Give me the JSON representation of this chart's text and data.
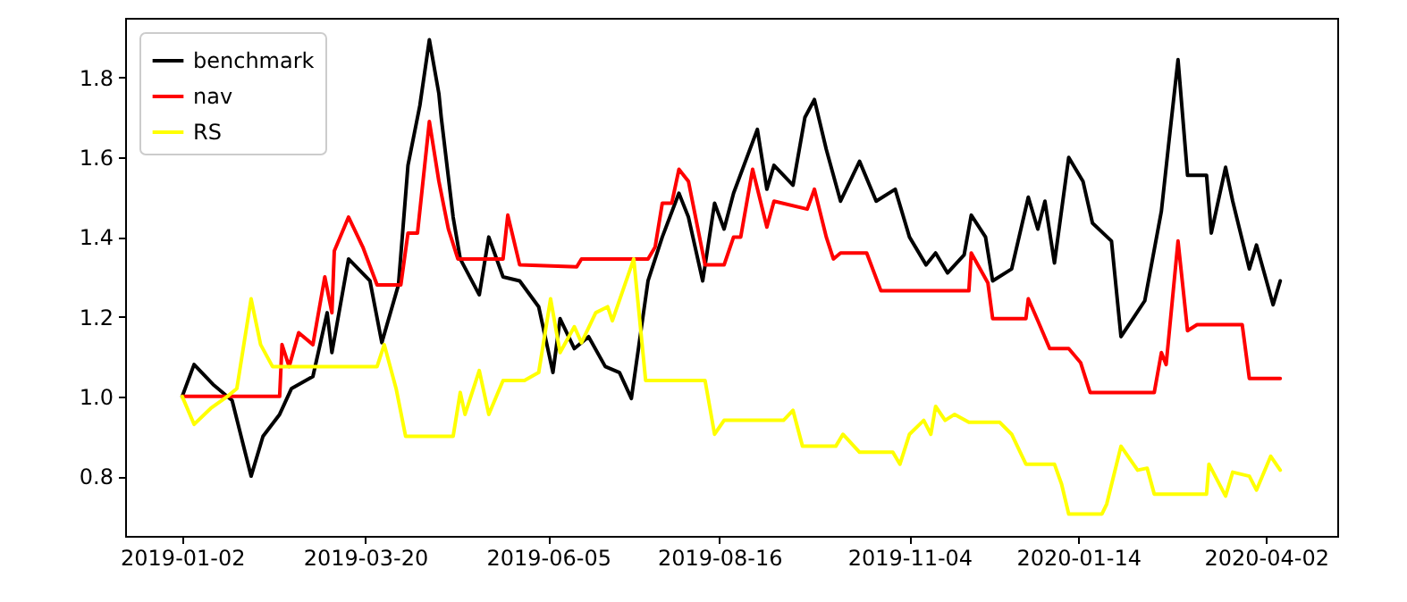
{
  "chart_data": {
    "type": "line",
    "legend": "top left",
    "grid": false,
    "line_style": "solid",
    "xlim": [
      "2018-12-09",
      "2020-05-02"
    ],
    "xticks": [
      "2019-01-02",
      "2019-03-20",
      "2019-06-05",
      "2019-08-16",
      "2019-11-04",
      "2020-01-14",
      "2020-04-02"
    ],
    "ylim": [
      0.65,
      1.95
    ],
    "yticks": [
      0.8,
      {
        "value": 1,
        "label": "1.0"
      },
      1.2,
      1.4,
      1.6,
      1.8
    ],
    "series": [
      {
        "name": "benchmark",
        "color": "#000000",
        "x": [
          "2019-01-02",
          "2019-01-07",
          "2019-01-15",
          "2019-01-23",
          "2019-01-31",
          "2019-02-05",
          "2019-02-12",
          "2019-02-17",
          "2019-02-26",
          "2019-03-04",
          "2019-03-06",
          "2019-03-13",
          "2019-03-22",
          "2019-03-27",
          "2019-04-03",
          "2019-04-07",
          "2019-04-12",
          "2019-04-16",
          "2019-04-20",
          "2019-04-21",
          "2019-04-26",
          "2019-04-29",
          "2019-05-07",
          "2019-05-11",
          "2019-05-17",
          "2019-05-24",
          "2019-06-01",
          "2019-06-07",
          "2019-06-10",
          "2019-06-16",
          "2019-06-22",
          "2019-06-29",
          "2019-07-05",
          "2019-07-10",
          "2019-07-17",
          "2019-07-23",
          "2019-07-30",
          "2019-08-03",
          "2019-08-09",
          "2019-08-14",
          "2019-08-18",
          "2019-08-22",
          "2019-09-01",
          "2019-09-05",
          "2019-09-08",
          "2019-09-16",
          "2019-09-21",
          "2019-09-25",
          "2019-09-30",
          "2019-10-06",
          "2019-10-14",
          "2019-10-21",
          "2019-10-29",
          "2019-11-04",
          "2019-11-11",
          "2019-11-15",
          "2019-11-20",
          "2019-11-27",
          "2019-11-30",
          "2019-12-06",
          "2019-12-09",
          "2019-12-17",
          "2019-12-24",
          "2019-12-28",
          "2019-12-31",
          "2020-01-04",
          "2020-01-10",
          "2020-01-16",
          "2020-01-20",
          "2020-01-28",
          "2020-02-01",
          "2020-02-11",
          "2020-02-18",
          "2020-02-21",
          "2020-02-25",
          "2020-02-29",
          "2020-03-08",
          "2020-03-10",
          "2020-03-16",
          "2020-03-19",
          "2020-03-26",
          "2020-03-29",
          "2020-04-05",
          "2020-04-08"
        ],
        "values": [
          1.0,
          1.08,
          1.03,
          0.99,
          0.8,
          0.9,
          0.955,
          1.02,
          1.05,
          1.21,
          1.11,
          1.345,
          1.29,
          1.135,
          1.28,
          1.58,
          1.73,
          1.895,
          1.76,
          1.7,
          1.45,
          1.345,
          1.255,
          1.4,
          1.3,
          1.29,
          1.225,
          1.06,
          1.195,
          1.12,
          1.15,
          1.075,
          1.06,
          0.995,
          1.29,
          1.4,
          1.51,
          1.45,
          1.29,
          1.485,
          1.42,
          1.51,
          1.67,
          1.52,
          1.58,
          1.53,
          1.7,
          1.745,
          1.62,
          1.49,
          1.59,
          1.49,
          1.52,
          1.4,
          1.33,
          1.36,
          1.31,
          1.355,
          1.455,
          1.4,
          1.29,
          1.32,
          1.5,
          1.42,
          1.49,
          1.335,
          1.6,
          1.54,
          1.435,
          1.39,
          1.15,
          1.24,
          1.465,
          1.63,
          1.845,
          1.555,
          1.555,
          1.41,
          1.575,
          1.49,
          1.32,
          1.38,
          1.23,
          1.29
        ]
      },
      {
        "name": "nav",
        "color": "#ff0000",
        "x": [
          "2019-01-02",
          "2019-02-12",
          "2019-02-13",
          "2019-02-16",
          "2019-02-20",
          "2019-02-26",
          "2019-03-03",
          "2019-03-06",
          "2019-03-07",
          "2019-03-13",
          "2019-03-19",
          "2019-03-25",
          "2019-04-04",
          "2019-04-07",
          "2019-04-11",
          "2019-04-16",
          "2019-04-20",
          "2019-04-24",
          "2019-04-28",
          "2019-05-17",
          "2019-05-19",
          "2019-05-24",
          "2019-06-17",
          "2019-06-19",
          "2019-07-17",
          "2019-07-20",
          "2019-07-23",
          "2019-07-27",
          "2019-07-30",
          "2019-08-03",
          "2019-08-10",
          "2019-08-18",
          "2019-08-22",
          "2019-08-25",
          "2019-08-30",
          "2019-09-05",
          "2019-09-08",
          "2019-09-22",
          "2019-09-25",
          "2019-09-30",
          "2019-10-03",
          "2019-10-06",
          "2019-10-17",
          "2019-10-23",
          "2019-11-29",
          "2019-11-30",
          "2019-12-07",
          "2019-12-09",
          "2019-12-23",
          "2019-12-24",
          "2019-12-28",
          "2020-01-02",
          "2020-01-10",
          "2020-01-15",
          "2020-01-19",
          "2020-02-15",
          "2020-02-18",
          "2020-02-20",
          "2020-02-25",
          "2020-02-29",
          "2020-03-04",
          "2020-03-23",
          "2020-03-26",
          "2020-04-08"
        ],
        "values": [
          1.0,
          1.0,
          1.13,
          1.075,
          1.16,
          1.13,
          1.3,
          1.21,
          1.365,
          1.45,
          1.375,
          1.28,
          1.28,
          1.41,
          1.41,
          1.69,
          1.54,
          1.42,
          1.345,
          1.345,
          1.455,
          1.33,
          1.325,
          1.345,
          1.345,
          1.375,
          1.485,
          1.485,
          1.57,
          1.54,
          1.33,
          1.33,
          1.4,
          1.4,
          1.57,
          1.425,
          1.49,
          1.47,
          1.52,
          1.4,
          1.345,
          1.36,
          1.36,
          1.265,
          1.265,
          1.36,
          1.285,
          1.195,
          1.195,
          1.245,
          1.19,
          1.12,
          1.12,
          1.085,
          1.01,
          1.01,
          1.11,
          1.08,
          1.39,
          1.165,
          1.18,
          1.18,
          1.045,
          1.045
        ]
      },
      {
        "name": "RS",
        "color": "#ffff00",
        "x": [
          "2019-01-02",
          "2019-01-07",
          "2019-01-14",
          "2019-01-21",
          "2019-01-25",
          "2019-01-31",
          "2019-02-04",
          "2019-02-09",
          "2019-03-25",
          "2019-03-28",
          "2019-04-02",
          "2019-04-06",
          "2019-04-26",
          "2019-04-29",
          "2019-05-01",
          "2019-05-07",
          "2019-05-11",
          "2019-05-17",
          "2019-05-26",
          "2019-06-01",
          "2019-06-06",
          "2019-06-10",
          "2019-06-16",
          "2019-06-19",
          "2019-06-25",
          "2019-06-30",
          "2019-07-02",
          "2019-07-11",
          "2019-07-16",
          "2019-08-10",
          "2019-08-14",
          "2019-08-18",
          "2019-09-12",
          "2019-09-16",
          "2019-09-20",
          "2019-10-04",
          "2019-10-07",
          "2019-10-14",
          "2019-10-28",
          "2019-10-31",
          "2019-11-04",
          "2019-11-10",
          "2019-11-13",
          "2019-11-15",
          "2019-11-19",
          "2019-11-23",
          "2019-11-29",
          "2019-12-12",
          "2019-12-17",
          "2019-12-23",
          "2020-01-04",
          "2020-01-07",
          "2020-01-10",
          "2020-01-24",
          "2020-01-26",
          "2020-02-01",
          "2020-02-08",
          "2020-02-12",
          "2020-02-15",
          "2020-03-08",
          "2020-03-09",
          "2020-03-16",
          "2020-03-19",
          "2020-03-26",
          "2020-03-29",
          "2020-04-04",
          "2020-04-08"
        ],
        "values": [
          1.0,
          0.93,
          0.97,
          1.0,
          1.02,
          1.245,
          1.13,
          1.075,
          1.075,
          1.13,
          1.02,
          0.9,
          0.9,
          1.01,
          0.955,
          1.065,
          0.955,
          1.04,
          1.04,
          1.06,
          1.245,
          1.11,
          1.175,
          1.135,
          1.21,
          1.225,
          1.19,
          1.345,
          1.04,
          1.04,
          0.905,
          0.94,
          0.94,
          0.965,
          0.875,
          0.875,
          0.905,
          0.86,
          0.86,
          0.83,
          0.905,
          0.94,
          0.905,
          0.975,
          0.94,
          0.955,
          0.935,
          0.935,
          0.905,
          0.83,
          0.83,
          0.78,
          0.705,
          0.705,
          0.73,
          0.875,
          0.815,
          0.82,
          0.755,
          0.755,
          0.83,
          0.75,
          0.81,
          0.8,
          0.765,
          0.85,
          0.815
        ]
      }
    ]
  }
}
